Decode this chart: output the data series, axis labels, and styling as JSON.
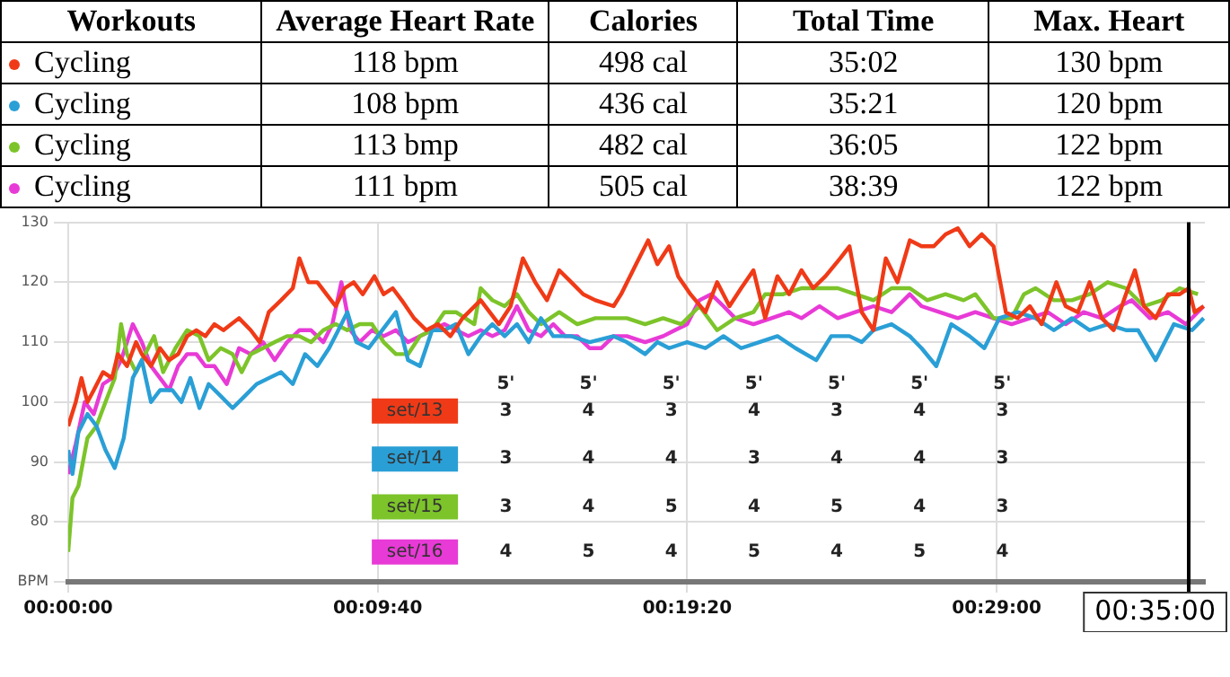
{
  "chart_data": {
    "type": "line",
    "xlim": [
      0,
      0.5917
    ],
    "xticks": [
      {
        "value": 0,
        "label": "00:00:00"
      },
      {
        "value": 0.1611,
        "label": "00:09:40"
      },
      {
        "value": 0.3222,
        "label": "00:19:20"
      },
      {
        "value": 0.4833,
        "label": "00:29:00"
      }
    ],
    "ylim": [
      70,
      130
    ],
    "yticks": [
      {
        "value": 70,
        "label": "BPM"
      },
      80,
      90,
      100,
      110,
      120,
      130
    ],
    "grid": true,
    "legend": "bottom",
    "series": [
      {
        "name": "set/13",
        "color": "#f03a17",
        "x": [
          0,
          0.0039,
          0.0069,
          0.01,
          0.0133,
          0.0181,
          0.0228,
          0.0258,
          0.0306,
          0.0353,
          0.0383,
          0.0431,
          0.0478,
          0.0525,
          0.0572,
          0.0619,
          0.0667,
          0.0714,
          0.0761,
          0.0808,
          0.0889,
          0.095,
          0.0997,
          0.1044,
          0.1108,
          0.1169,
          0.1203,
          0.125,
          0.1297,
          0.1344,
          0.1392,
          0.1439,
          0.1486,
          0.1533,
          0.1594,
          0.1642,
          0.1689,
          0.1736,
          0.18,
          0.1864,
          0.1925,
          0.1989,
          0.2053,
          0.2147,
          0.2242,
          0.2303,
          0.2367,
          0.2431,
          0.2492,
          0.2556,
          0.2619,
          0.2681,
          0.2744,
          0.2839,
          0.2878,
          0.2956,
          0.3019,
          0.3067,
          0.3128,
          0.3175,
          0.3239,
          0.3317,
          0.3378,
          0.3442,
          0.3503,
          0.3567,
          0.3628,
          0.3692,
          0.3753,
          0.3817,
          0.3878,
          0.3942,
          0.4019,
          0.4067,
          0.4131,
          0.4192,
          0.4256,
          0.4317,
          0.4381,
          0.4442,
          0.4506,
          0.4567,
          0.4631,
          0.4692,
          0.4756,
          0.4817,
          0.4881,
          0.4942,
          0.5006,
          0.5067,
          0.5144,
          0.5192,
          0.5256,
          0.5317,
          0.5381,
          0.5442,
          0.5506,
          0.5553,
          0.56,
          0.5661,
          0.5725,
          0.5786,
          0.5833,
          0.5864,
          0.5911
        ],
        "values": [
          96,
          100,
          104,
          100,
          102,
          105,
          104,
          108,
          106,
          110,
          108,
          106,
          109,
          107,
          108,
          111,
          112,
          111,
          113,
          112,
          114,
          112,
          110,
          115,
          117,
          119,
          124,
          120,
          120,
          118,
          116,
          119,
          120,
          118,
          121,
          118,
          119,
          117,
          114,
          112,
          113,
          111,
          114,
          117,
          113,
          116,
          124,
          120,
          117,
          122,
          120,
          118,
          117,
          116,
          118,
          123,
          127,
          123,
          126,
          121,
          118,
          115,
          120,
          116,
          119,
          122,
          114,
          121,
          118,
          122,
          119,
          121,
          124,
          126,
          115,
          112,
          124,
          120,
          127,
          126,
          126,
          128,
          129,
          126,
          128,
          126,
          115,
          114,
          116,
          113,
          120,
          116,
          115,
          120,
          114,
          112,
          118,
          122,
          116,
          114,
          118,
          118,
          119,
          115,
          116
        ]
      },
      {
        "name": "set/14",
        "color": "#2a9fd6",
        "x": [
          0,
          0.0022,
          0.0053,
          0.01,
          0.0147,
          0.0194,
          0.0242,
          0.0289,
          0.0336,
          0.0383,
          0.0431,
          0.0478,
          0.0542,
          0.0589,
          0.0636,
          0.0683,
          0.0731,
          0.0794,
          0.0856,
          0.0919,
          0.0981,
          0.1044,
          0.1108,
          0.1169,
          0.1233,
          0.1297,
          0.1358,
          0.1406,
          0.1453,
          0.15,
          0.1564,
          0.1611,
          0.1706,
          0.1769,
          0.1831,
          0.1894,
          0.1958,
          0.2019,
          0.2083,
          0.2147,
          0.2208,
          0.2272,
          0.2336,
          0.2397,
          0.2461,
          0.2525,
          0.2619,
          0.2714,
          0.2839,
          0.2908,
          0.3003,
          0.3067,
          0.3128,
          0.3222,
          0.3317,
          0.3411,
          0.3503,
          0.3597,
          0.3692,
          0.3786,
          0.3894,
          0.3972,
          0.4067,
          0.4131,
          0.4192,
          0.4286,
          0.4381,
          0.4442,
          0.4519,
          0.4597,
          0.4692,
          0.4769,
          0.4847,
          0.4942,
          0.5036,
          0.5131,
          0.5225,
          0.5317,
          0.5411,
          0.5506,
          0.5569,
          0.5661,
          0.5756,
          0.585,
          0.5911
        ],
        "values": [
          92,
          88,
          95,
          98,
          96,
          92,
          89,
          94,
          104,
          107,
          100,
          102,
          102,
          100,
          104,
          99,
          103,
          101,
          99,
          101,
          103,
          104,
          105,
          103,
          108,
          106,
          109,
          112,
          115,
          110,
          109,
          111,
          115,
          107,
          106,
          112,
          112,
          113,
          108,
          111,
          113,
          111,
          113,
          110,
          114,
          111,
          111,
          110,
          111,
          110,
          108,
          110,
          109,
          110,
          109,
          111,
          109,
          110,
          111,
          109,
          107,
          111,
          111,
          110,
          112,
          113,
          111,
          109,
          106,
          113,
          111,
          109,
          114,
          115,
          114,
          112,
          114,
          112,
          113,
          112,
          112,
          107,
          113,
          112,
          114
        ]
      },
      {
        "name": "set/15",
        "color": "#7cc42a",
        "x": [
          0,
          0.0022,
          0.0053,
          0.01,
          0.0147,
          0.0194,
          0.0242,
          0.0275,
          0.0306,
          0.0353,
          0.04,
          0.0447,
          0.0494,
          0.0558,
          0.0619,
          0.0683,
          0.0731,
          0.0794,
          0.0856,
          0.0903,
          0.095,
          0.1014,
          0.1075,
          0.1139,
          0.1203,
          0.1264,
          0.1328,
          0.1392,
          0.1453,
          0.1517,
          0.1581,
          0.1642,
          0.1706,
          0.1769,
          0.1831,
          0.1894,
          0.1958,
          0.2019,
          0.2114,
          0.2147,
          0.2208,
          0.2272,
          0.2336,
          0.2397,
          0.2461,
          0.2556,
          0.265,
          0.2744,
          0.2839,
          0.2908,
          0.3003,
          0.3097,
          0.3192,
          0.3286,
          0.3378,
          0.3472,
          0.3567,
          0.3628,
          0.3722,
          0.3817,
          0.3911,
          0.4006,
          0.4097,
          0.4192,
          0.4286,
          0.4381,
          0.4472,
          0.4567,
          0.4661,
          0.4722,
          0.4817,
          0.4911,
          0.4975,
          0.5036,
          0.5131,
          0.5225,
          0.5317,
          0.5411,
          0.5506,
          0.56,
          0.5694,
          0.5786,
          0.5881
        ],
        "values": [
          75,
          84,
          86,
          94,
          96,
          100,
          104,
          113,
          108,
          105,
          108,
          111,
          105,
          109,
          112,
          111,
          107,
          109,
          108,
          105,
          108,
          109,
          110,
          111,
          111,
          110,
          112,
          113,
          112,
          113,
          113,
          110,
          108,
          108,
          111,
          112,
          115,
          115,
          113,
          119,
          117,
          116,
          118,
          115,
          113,
          115,
          113,
          114,
          114,
          114,
          113,
          114,
          113,
          116,
          112,
          114,
          115,
          118,
          118,
          119,
          119,
          119,
          118,
          117,
          119,
          119,
          117,
          118,
          117,
          118,
          114,
          114,
          118,
          119,
          117,
          117,
          118,
          120,
          119,
          116,
          117,
          119,
          118
        ]
      },
      {
        "name": "set/16",
        "color": "#e83ad6",
        "x": [
          0,
          0.0039,
          0.0086,
          0.0133,
          0.0181,
          0.0228,
          0.0275,
          0.0306,
          0.0336,
          0.0383,
          0.0431,
          0.0478,
          0.0525,
          0.0572,
          0.0619,
          0.0667,
          0.0714,
          0.0761,
          0.0825,
          0.0889,
          0.095,
          0.1014,
          0.1075,
          0.1139,
          0.1203,
          0.1264,
          0.1328,
          0.1375,
          0.1422,
          0.1469,
          0.1517,
          0.1581,
          0.1642,
          0.1706,
          0.1769,
          0.1831,
          0.1894,
          0.1958,
          0.2019,
          0.2083,
          0.2147,
          0.2208,
          0.2272,
          0.2336,
          0.2397,
          0.2461,
          0.2525,
          0.2586,
          0.265,
          0.2714,
          0.2775,
          0.2839,
          0.2908,
          0.3003,
          0.3097,
          0.3158,
          0.3222,
          0.3286,
          0.3347,
          0.3411,
          0.3472,
          0.3567,
          0.3661,
          0.3753,
          0.3817,
          0.3911,
          0.4006,
          0.4097,
          0.4192,
          0.4286,
          0.4381,
          0.4442,
          0.4536,
          0.4631,
          0.4722,
          0.4817,
          0.4911,
          0.5006,
          0.51,
          0.5192,
          0.5286,
          0.5381,
          0.5475,
          0.5536,
          0.5631,
          0.5725,
          0.5819,
          0.5911
        ],
        "values": [
          88,
          93,
          100,
          98,
          103,
          104,
          107,
          110,
          113,
          110,
          106,
          104,
          102,
          106,
          108,
          108,
          106,
          106,
          103,
          109,
          108,
          110,
          107,
          110,
          112,
          112,
          110,
          113,
          120,
          112,
          110,
          112,
          111,
          112,
          110,
          111,
          112,
          113,
          112,
          111,
          112,
          111,
          112,
          116,
          112,
          111,
          113,
          111,
          111,
          109,
          109,
          111,
          111,
          110,
          111,
          112,
          113,
          117,
          118,
          116,
          114,
          113,
          114,
          115,
          114,
          116,
          114,
          115,
          116,
          115,
          118,
          116,
          115,
          114,
          115,
          114,
          113,
          114,
          115,
          113,
          115,
          114,
          116,
          117,
          114,
          115,
          113,
          116
        ]
      }
    ],
    "ref_lines": [
      {
        "axis": "x",
        "value": 0.5833,
        "color": "#000000"
      }
    ],
    "annotations": [
      "Workouts",
      "Average Heart Rate",
      "Calories",
      "Total Time",
      "Max. Heart",
      "Cycling",
      "118 bpm",
      "498 cal",
      "35:02",
      "130 bpm",
      "Cycling",
      "108 bpm",
      "436 cal",
      "35:21",
      "120 bpm",
      "Cycling",
      "113 bmp",
      "482 cal",
      "36:05",
      "122 bpm",
      "Cycling",
      "111 bpm",
      "505 cal",
      "38:39",
      "122 bpm",
      "5'",
      "5'",
      "5'",
      "5'",
      "5'",
      "5'",
      "5'",
      "3",
      "4",
      "3",
      "4",
      "3",
      "4",
      "3",
      "3",
      "4",
      "4",
      "3",
      "4",
      "4",
      "3",
      "3",
      "4",
      "5",
      "4",
      "5",
      "4",
      "3",
      "4",
      "5",
      "4",
      "5",
      "4",
      "5",
      "4",
      "00:35:00"
    ]
  }
}
